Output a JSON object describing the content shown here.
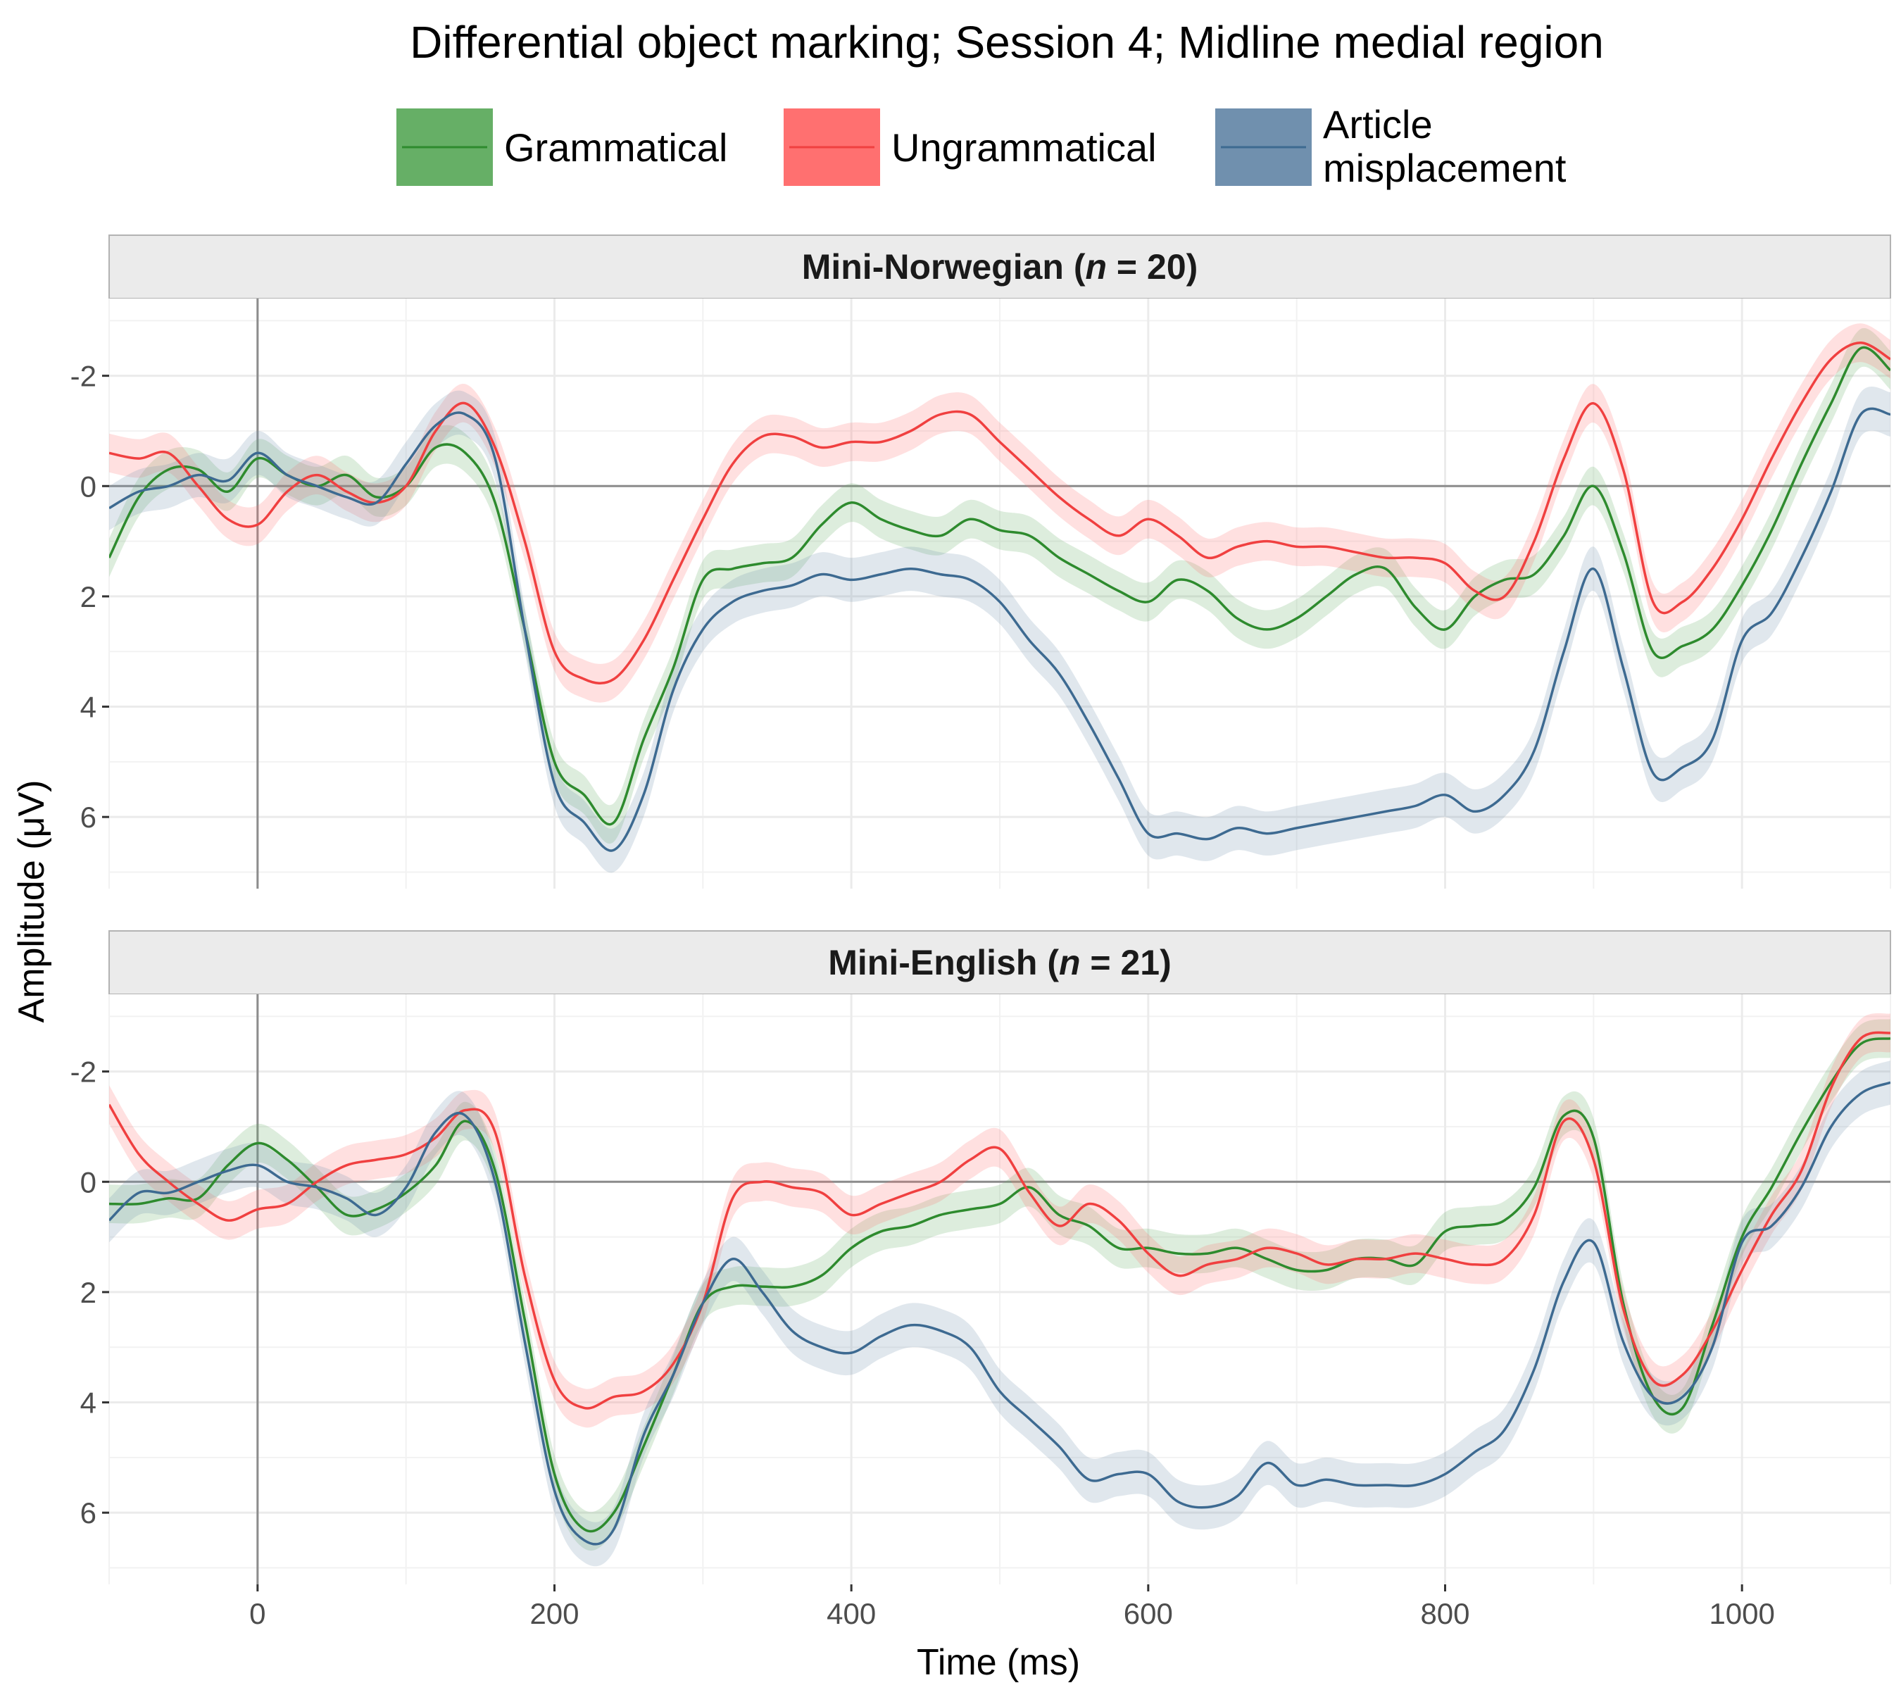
{
  "chart_data": {
    "type": "line",
    "title": "Differential object marking; Session 4; Midline medial region",
    "xlabel": "Time (ms)",
    "ylabel": "Amplitude (μV)",
    "xlim": [
      -100,
      1100
    ],
    "ylim_reversed": true,
    "ylim": [
      -3.4,
      7.3
    ],
    "x_ticks": [
      0,
      200,
      400,
      600,
      800,
      1000
    ],
    "x_tick_labels": [
      "0",
      "200",
      "400",
      "600",
      "800",
      "1000"
    ],
    "y_ticks": [
      -2,
      0,
      2,
      4,
      6
    ],
    "y_tick_labels": [
      "-2",
      "0",
      "2",
      "4",
      "6"
    ],
    "grid": true,
    "legend_position": "top",
    "legend": [
      {
        "label": "Grammatical",
        "color": "#2e8b2e",
        "fill": "#66af66"
      },
      {
        "label": "Ungrammatical",
        "color": "#f04040",
        "fill": "#ff7070"
      },
      {
        "label_lines": [
          "Article",
          "misplacement"
        ],
        "color": "#3d6a91",
        "fill": "#7090ae"
      }
    ],
    "x": [
      -100,
      -80,
      -60,
      -40,
      -20,
      0,
      20,
      40,
      60,
      80,
      100,
      120,
      140,
      160,
      180,
      200,
      220,
      240,
      260,
      280,
      300,
      320,
      340,
      360,
      380,
      400,
      420,
      440,
      460,
      480,
      500,
      520,
      540,
      560,
      580,
      600,
      620,
      640,
      660,
      680,
      700,
      720,
      740,
      760,
      780,
      800,
      820,
      840,
      860,
      880,
      900,
      920,
      940,
      960,
      980,
      1000,
      1020,
      1040,
      1060,
      1080,
      1100
    ],
    "panels": [
      {
        "title_prefix": "Mini-Norwegian (",
        "title_italic": "n",
        "title_suffix": " = 20)",
        "series": [
          {
            "key": "grammatical",
            "color": "#2e8b2e",
            "band": "#66af66",
            "ci": 0.35,
            "values": [
              1.3,
              0.2,
              -0.3,
              -0.3,
              0.1,
              -0.5,
              -0.2,
              0.0,
              -0.2,
              0.2,
              0.0,
              -0.7,
              -0.6,
              0.3,
              2.6,
              5.0,
              5.6,
              6.1,
              4.6,
              3.3,
              1.7,
              1.5,
              1.4,
              1.3,
              0.7,
              0.3,
              0.6,
              0.8,
              0.9,
              0.6,
              0.8,
              0.9,
              1.3,
              1.6,
              1.9,
              2.1,
              1.7,
              1.9,
              2.4,
              2.6,
              2.4,
              2.0,
              1.6,
              1.5,
              2.2,
              2.6,
              2.0,
              1.7,
              1.6,
              0.9,
              0.0,
              1.2,
              3.0,
              2.9,
              2.6,
              1.8,
              0.8,
              -0.4,
              -1.5,
              -2.5,
              -2.1
            ]
          },
          {
            "key": "ungrammatical",
            "color": "#f04040",
            "band": "#ff7070",
            "ci": 0.35,
            "values": [
              -0.6,
              -0.5,
              -0.6,
              0.0,
              0.6,
              0.7,
              0.1,
              -0.2,
              0.1,
              0.3,
              0.0,
              -1.0,
              -1.5,
              -0.7,
              1.0,
              3.0,
              3.5,
              3.5,
              2.8,
              1.7,
              0.6,
              -0.4,
              -0.9,
              -0.9,
              -0.7,
              -0.8,
              -0.8,
              -1.0,
              -1.3,
              -1.3,
              -0.8,
              -0.3,
              0.2,
              0.6,
              0.9,
              0.6,
              0.9,
              1.3,
              1.1,
              1.0,
              1.1,
              1.1,
              1.2,
              1.3,
              1.3,
              1.4,
              1.9,
              2.0,
              1.0,
              -0.5,
              -1.5,
              -0.3,
              2.1,
              2.1,
              1.5,
              0.6,
              -0.5,
              -1.5,
              -2.3,
              -2.6,
              -2.3
            ]
          },
          {
            "key": "article_misplacement",
            "color": "#3d6a91",
            "band": "#7090ae",
            "ci": 0.4,
            "values": [
              0.4,
              0.1,
              0.0,
              -0.2,
              -0.1,
              -0.6,
              -0.2,
              0.0,
              0.2,
              0.3,
              -0.4,
              -1.1,
              -1.3,
              -0.5,
              2.6,
              5.4,
              6.1,
              6.6,
              5.6,
              3.7,
              2.6,
              2.1,
              1.9,
              1.8,
              1.6,
              1.7,
              1.6,
              1.5,
              1.6,
              1.7,
              2.1,
              2.8,
              3.4,
              4.3,
              5.3,
              6.3,
              6.3,
              6.4,
              6.2,
              6.3,
              6.2,
              6.1,
              6.0,
              5.9,
              5.8,
              5.6,
              5.9,
              5.6,
              4.8,
              3.0,
              1.5,
              3.3,
              5.2,
              5.1,
              4.6,
              2.8,
              2.3,
              1.3,
              0.1,
              -1.3,
              -1.3
            ]
          }
        ]
      },
      {
        "title_prefix": "Mini-English (",
        "title_italic": "n",
        "title_suffix": " = 21)",
        "series": [
          {
            "key": "grammatical",
            "color": "#2e8b2e",
            "band": "#66af66",
            "ci": 0.35,
            "values": [
              0.4,
              0.4,
              0.3,
              0.3,
              -0.3,
              -0.7,
              -0.4,
              0.1,
              0.6,
              0.5,
              0.2,
              -0.3,
              -1.1,
              -0.2,
              2.5,
              5.3,
              6.3,
              6.0,
              4.8,
              3.5,
              2.2,
              1.9,
              1.9,
              1.9,
              1.7,
              1.2,
              0.9,
              0.8,
              0.6,
              0.5,
              0.4,
              0.1,
              0.6,
              0.8,
              1.2,
              1.2,
              1.3,
              1.3,
              1.2,
              1.4,
              1.6,
              1.6,
              1.4,
              1.4,
              1.5,
              0.9,
              0.8,
              0.7,
              0.1,
              -1.2,
              -0.8,
              2.2,
              3.9,
              4.1,
              2.6,
              1.0,
              0.1,
              -0.9,
              -1.8,
              -2.5,
              -2.6
            ]
          },
          {
            "key": "ungrammatical",
            "color": "#f04040",
            "band": "#ff7070",
            "ci": 0.35,
            "values": [
              -1.4,
              -0.5,
              0.0,
              0.4,
              0.7,
              0.5,
              0.4,
              0.0,
              -0.3,
              -0.4,
              -0.5,
              -0.8,
              -1.3,
              -0.9,
              1.7,
              3.6,
              4.1,
              3.9,
              3.8,
              3.3,
              2.2,
              0.3,
              0.0,
              0.1,
              0.2,
              0.6,
              0.4,
              0.2,
              0.0,
              -0.4,
              -0.6,
              0.2,
              0.8,
              0.4,
              0.7,
              1.3,
              1.7,
              1.5,
              1.4,
              1.2,
              1.3,
              1.5,
              1.4,
              1.4,
              1.3,
              1.4,
              1.5,
              1.4,
              0.6,
              -1.1,
              -0.4,
              2.3,
              3.6,
              3.5,
              2.7,
              1.6,
              0.6,
              -0.2,
              -1.7,
              -2.6,
              -2.7
            ]
          },
          {
            "key": "article_misplacement",
            "color": "#3d6a91",
            "band": "#7090ae",
            "ci": 0.4,
            "values": [
              0.7,
              0.2,
              0.2,
              0.0,
              -0.2,
              -0.3,
              0.0,
              0.1,
              0.3,
              0.6,
              0.1,
              -0.9,
              -1.2,
              0.0,
              2.9,
              5.6,
              6.5,
              6.3,
              4.6,
              3.5,
              2.2,
              1.4,
              2.0,
              2.7,
              3.0,
              3.1,
              2.8,
              2.6,
              2.7,
              3.0,
              3.8,
              4.3,
              4.8,
              5.4,
              5.3,
              5.3,
              5.8,
              5.9,
              5.7,
              5.1,
              5.5,
              5.4,
              5.5,
              5.5,
              5.5,
              5.3,
              4.9,
              4.5,
              3.4,
              1.8,
              1.1,
              2.9,
              3.9,
              3.9,
              3.0,
              1.1,
              0.8,
              0.1,
              -1.0,
              -1.6,
              -1.8
            ]
          }
        ]
      }
    ]
  }
}
